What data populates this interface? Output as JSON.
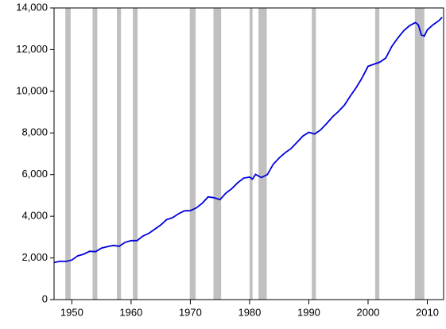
{
  "chart_data": {
    "type": "line",
    "x": [
      1947,
      1948,
      1949,
      1950,
      1951,
      1952,
      1953,
      1954,
      1955,
      1956,
      1957,
      1958,
      1959,
      1960,
      1961,
      1962,
      1963,
      1964,
      1965,
      1966,
      1967,
      1968,
      1969,
      1970,
      1971,
      1972,
      1973,
      1974,
      1975,
      1976,
      1977,
      1978,
      1979,
      1980,
      1980.5,
      1981,
      1982,
      1983,
      1984,
      1985,
      1986,
      1987,
      1988,
      1989,
      1990,
      1991,
      1992,
      1993,
      1994,
      1995,
      1996,
      1997,
      1998,
      1999,
      2000,
      2001,
      2002,
      2003,
      2004,
      2005,
      2006,
      2007,
      2008,
      2008.5,
      2009,
      2009.5,
      2010,
      2011,
      2012,
      2012.5
    ],
    "series": [
      {
        "color": "#0000dd",
        "values": [
          1780,
          1840,
          1830,
          1900,
          2100,
          2180,
          2320,
          2300,
          2470,
          2540,
          2600,
          2560,
          2750,
          2830,
          2830,
          3050,
          3180,
          3380,
          3580,
          3840,
          3930,
          4120,
          4260,
          4270,
          4400,
          4620,
          4930,
          4890,
          4800,
          5110,
          5330,
          5610,
          5830,
          5880,
          5780,
          6010,
          5860,
          6000,
          6500,
          6800,
          7050,
          7250,
          7550,
          7850,
          8030,
          7950,
          8150,
          8450,
          8770,
          9030,
          9330,
          9770,
          10180,
          10650,
          11200,
          11300,
          11400,
          11600,
          12150,
          12550,
          12900,
          13150,
          13300,
          13180,
          12700,
          12650,
          12950,
          13200,
          13400,
          13550
        ]
      }
    ],
    "shaded_regions": [
      {
        "start": 1948.9,
        "end": 1949.8
      },
      {
        "start": 1953.5,
        "end": 1954.3
      },
      {
        "start": 1957.6,
        "end": 1958.3
      },
      {
        "start": 1960.3,
        "end": 1961.1
      },
      {
        "start": 1969.9,
        "end": 1970.9
      },
      {
        "start": 1973.9,
        "end": 1975.2
      },
      {
        "start": 1980.0,
        "end": 1980.5
      },
      {
        "start": 1981.5,
        "end": 1982.9
      },
      {
        "start": 1990.5,
        "end": 1991.2
      },
      {
        "start": 2001.2,
        "end": 2001.9
      },
      {
        "start": 2007.9,
        "end": 2009.5
      }
    ],
    "shade_color": "#c0c0c0",
    "xlim": [
      1947,
      2012.75
    ],
    "xticks": [
      1950,
      1960,
      1970,
      1980,
      1990,
      2000,
      2010
    ],
    "ylim": [
      0,
      14000
    ],
    "yticks": [
      0,
      {
        "value": 2000,
        "label": "2,000"
      },
      {
        "value": 4000,
        "label": "4,000"
      },
      {
        "value": 6000,
        "label": "6,000"
      },
      {
        "value": 8000,
        "label": "8,000"
      },
      {
        "value": 10000,
        "label": "10,000"
      },
      {
        "value": 12000,
        "label": "12,000"
      },
      {
        "value": 14000,
        "label": "14,000"
      }
    ]
  }
}
